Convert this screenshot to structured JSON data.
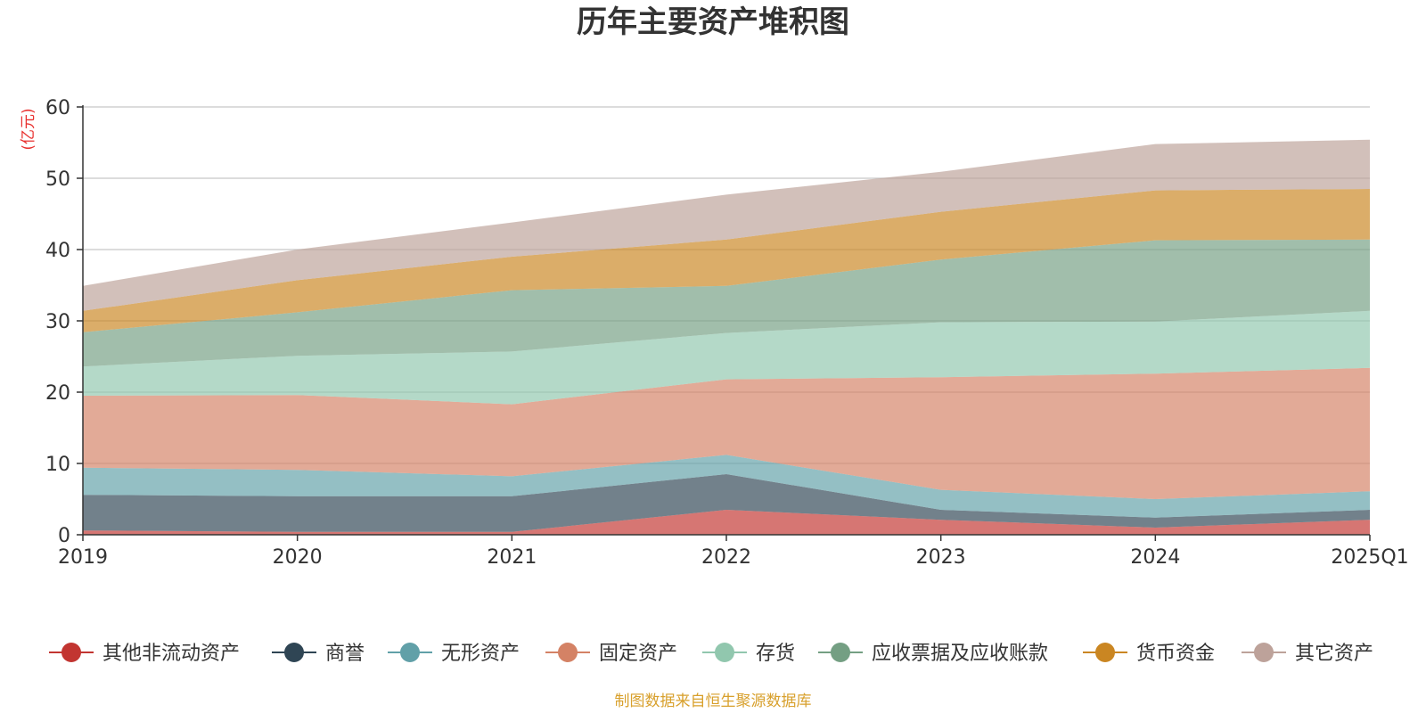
{
  "chart_data": {
    "type": "area",
    "stacked": true,
    "title": "历年主要资产堆积图",
    "unit_label": "(亿元)",
    "source": "制图数据来自恒生聚源数据库",
    "categories": [
      "2019",
      "2020",
      "2021",
      "2022",
      "2023",
      "2024",
      "2025Q1"
    ],
    "ylim": [
      0,
      60
    ],
    "yticks": [
      0,
      10,
      20,
      30,
      40,
      50,
      60
    ],
    "grid": true,
    "legend_position": "bottom",
    "series": [
      {
        "name": "其他非流动资产",
        "color": "#c23531",
        "values": [
          0.6,
          0.4,
          0.4,
          3.5,
          2.1,
          1.0,
          2.1
        ]
      },
      {
        "name": "商誉",
        "color": "#2f4554",
        "values": [
          5.0,
          5.0,
          5.0,
          5.0,
          1.4,
          1.4,
          1.4
        ]
      },
      {
        "name": "无形资产",
        "color": "#61a0a8",
        "values": [
          3.8,
          3.7,
          2.8,
          2.7,
          2.8,
          2.6,
          2.6
        ]
      },
      {
        "name": "固定资产",
        "color": "#d48265",
        "values": [
          10.1,
          10.5,
          10.1,
          10.6,
          15.8,
          17.6,
          17.3
        ]
      },
      {
        "name": "存货",
        "color": "#91c7ae",
        "values": [
          4.1,
          5.5,
          7.4,
          6.5,
          7.7,
          7.3,
          8.0
        ]
      },
      {
        "name": "应收票据及应收账款",
        "color": "#749f83",
        "values": [
          4.8,
          6.1,
          8.6,
          6.6,
          8.8,
          11.4,
          10.0
        ]
      },
      {
        "name": "货币资金",
        "color": "#ca8622",
        "values": [
          3.0,
          4.5,
          4.7,
          6.5,
          6.7,
          7.0,
          7.1
        ]
      },
      {
        "name": "其它资产",
        "color": "#bda29a",
        "values": [
          3.5,
          4.3,
          4.8,
          6.3,
          5.6,
          6.5,
          6.9
        ]
      }
    ]
  }
}
